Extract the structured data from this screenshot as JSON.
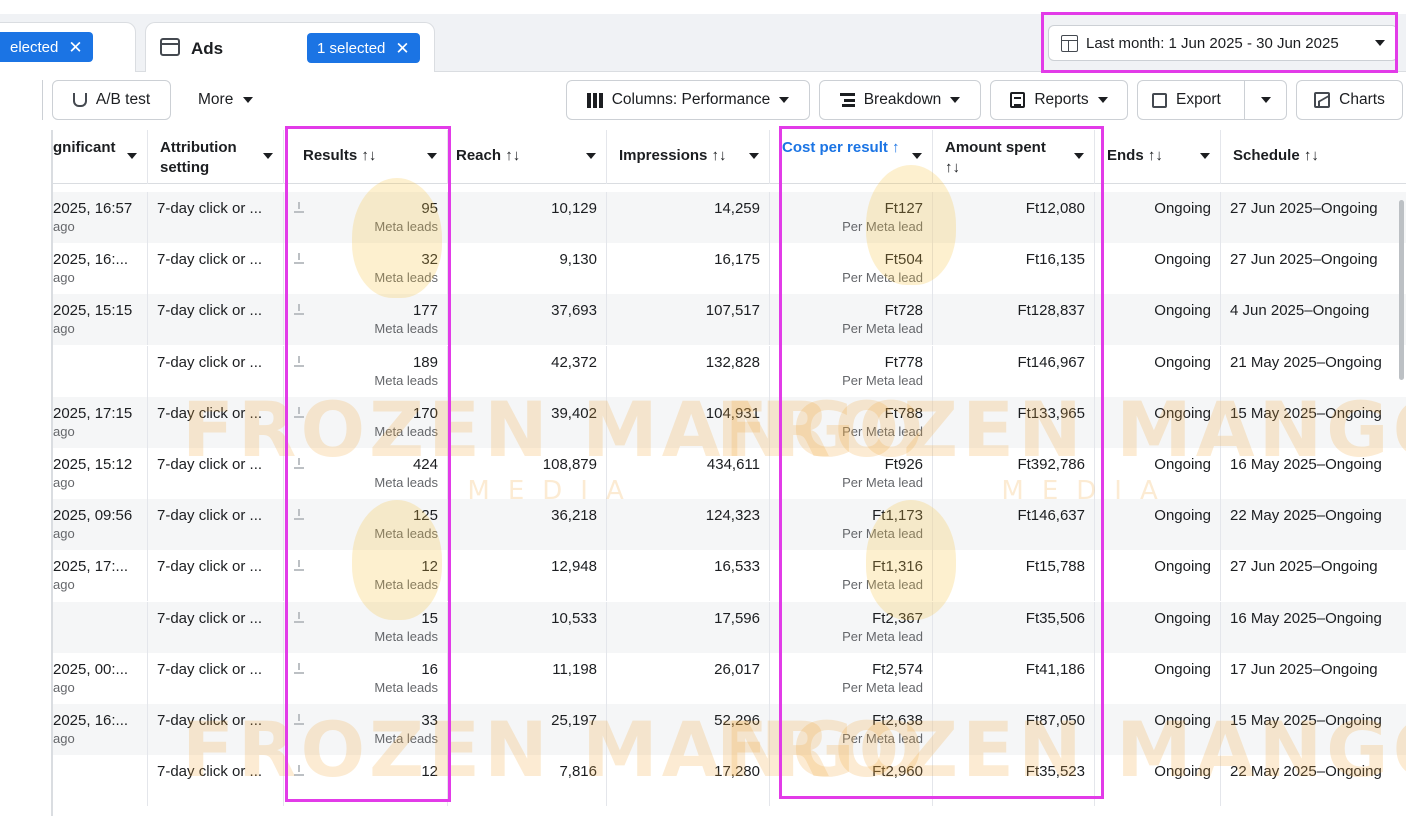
{
  "tabs": {
    "campaigns_chip": "elected",
    "ads_label": "Ads",
    "ads_chip": "1 selected"
  },
  "date_range": "Last month: 1 Jun 2025 - 30 Jun 2025",
  "toolbar": {
    "ab_test": "A/B test",
    "more": "More",
    "columns": "Columns: Performance",
    "breakdown": "Breakdown",
    "reports": "Reports",
    "export": "Export",
    "charts": "Charts"
  },
  "columns": {
    "significant": "gnificant",
    "attribution": "Attribution setting",
    "results": "Results ↑↓",
    "reach": "Reach ↑↓",
    "impressions": "Impressions ↑↓",
    "cpr": "Cost per result ↑",
    "amount": "Amount spent ↑↓",
    "ends": "Ends ↑↓",
    "schedule": "Schedule ↑↓"
  },
  "rows": [
    {
      "sig": "2025, 16:57",
      "ago": "ago",
      "attr": "7-day click or ...",
      "results": "95",
      "rlabel": "Meta leads",
      "reach": "10,129",
      "impr": "14,259",
      "cpr": "Ft127",
      "cprl": "Per Meta lead",
      "amt": "Ft12,080",
      "ends": "Ongoing",
      "sched": "27 Jun 2025–Ongoing"
    },
    {
      "sig": "2025, 16:...",
      "ago": "ago",
      "attr": "7-day click or ...",
      "results": "32",
      "rlabel": "Meta leads",
      "reach": "9,130",
      "impr": "16,175",
      "cpr": "Ft504",
      "cprl": "Per Meta lead",
      "amt": "Ft16,135",
      "ends": "Ongoing",
      "sched": "27 Jun 2025–Ongoing"
    },
    {
      "sig": "2025, 15:15",
      "ago": "ago",
      "attr": "7-day click or ...",
      "results": "177",
      "rlabel": "Meta leads",
      "reach": "37,693",
      "impr": "107,517",
      "cpr": "Ft728",
      "cprl": "Per Meta lead",
      "amt": "Ft128,837",
      "ends": "Ongoing",
      "sched": "4 Jun 2025–Ongoing"
    },
    {
      "sig": "",
      "ago": "",
      "attr": "7-day click or ...",
      "results": "189",
      "rlabel": "Meta leads",
      "reach": "42,372",
      "impr": "132,828",
      "cpr": "Ft778",
      "cprl": "Per Meta lead",
      "amt": "Ft146,967",
      "ends": "Ongoing",
      "sched": "21 May 2025–Ongoing"
    },
    {
      "sig": "2025, 17:15",
      "ago": "ago",
      "attr": "7-day click or ...",
      "results": "170",
      "rlabel": "Meta leads",
      "reach": "39,402",
      "impr": "104,931",
      "cpr": "Ft788",
      "cprl": "Per Meta lead",
      "amt": "Ft133,965",
      "ends": "Ongoing",
      "sched": "15 May 2025–Ongoing"
    },
    {
      "sig": "2025, 15:12",
      "ago": "ago",
      "attr": "7-day click or ...",
      "results": "424",
      "rlabel": "Meta leads",
      "reach": "108,879",
      "impr": "434,611",
      "cpr": "Ft926",
      "cprl": "Per Meta lead",
      "amt": "Ft392,786",
      "ends": "Ongoing",
      "sched": "16 May 2025–Ongoing"
    },
    {
      "sig": "2025, 09:56",
      "ago": "ago",
      "attr": "7-day click or ...",
      "results": "125",
      "rlabel": "Meta leads",
      "reach": "36,218",
      "impr": "124,323",
      "cpr": "Ft1,173",
      "cprl": "Per Meta lead",
      "amt": "Ft146,637",
      "ends": "Ongoing",
      "sched": "22 May 2025–Ongoing"
    },
    {
      "sig": "2025, 17:...",
      "ago": "ago",
      "attr": "7-day click or ...",
      "results": "12",
      "rlabel": "Meta leads",
      "reach": "12,948",
      "impr": "16,533",
      "cpr": "Ft1,316",
      "cprl": "Per Meta lead",
      "amt": "Ft15,788",
      "ends": "Ongoing",
      "sched": "27 Jun 2025–Ongoing"
    },
    {
      "sig": "",
      "ago": "",
      "attr": "7-day click or ...",
      "results": "15",
      "rlabel": "Meta leads",
      "reach": "10,533",
      "impr": "17,596",
      "cpr": "Ft2,367",
      "cprl": "Per Meta lead",
      "amt": "Ft35,506",
      "ends": "Ongoing",
      "sched": "16 May 2025–Ongoing"
    },
    {
      "sig": "2025, 00:...",
      "ago": "ago",
      "attr": "7-day click or ...",
      "results": "16",
      "rlabel": "Meta leads",
      "reach": "11,198",
      "impr": "26,017",
      "cpr": "Ft2,574",
      "cprl": "Per Meta lead",
      "amt": "Ft41,186",
      "ends": "Ongoing",
      "sched": "17 Jun 2025–Ongoing"
    },
    {
      "sig": "2025, 16:...",
      "ago": "ago",
      "attr": "7-day click or ...",
      "results": "33",
      "rlabel": "Meta leads",
      "reach": "25,197",
      "impr": "52,296",
      "cpr": "Ft2,638",
      "cprl": "Per Meta lead",
      "amt": "Ft87,050",
      "ends": "Ongoing",
      "sched": "15 May 2025–Ongoing"
    },
    {
      "sig": "",
      "ago": "",
      "attr": "7-day click or ...",
      "results": "12",
      "rlabel": "",
      "reach": "7,816",
      "impr": "17,280",
      "cpr": "Ft2,960",
      "cprl": "",
      "amt": "Ft35,523",
      "ends": "Ongoing",
      "sched": "22 May 2025–Ongoing"
    }
  ],
  "watermark": {
    "brand": "FROZEN MANGO",
    "sub": "MEDIA"
  },
  "colors": {
    "accent": "#1b74e4",
    "highlight": "#e23be8"
  }
}
